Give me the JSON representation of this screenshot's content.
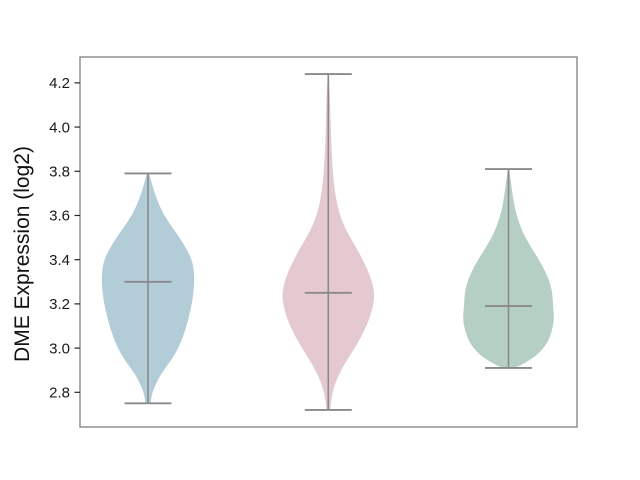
{
  "chart_data": {
    "type": "violin",
    "title": "",
    "ylabel": "DME Expression (log2)",
    "xlabel": "",
    "ylim": [
      2.64,
      4.32
    ],
    "yticks": [
      2.8,
      3.0,
      3.2,
      3.4,
      3.6,
      3.8,
      4.0,
      4.2
    ],
    "x_tick_labels": [],
    "grid": false,
    "legend": false,
    "axis_color": "#808080",
    "tick_color": "#262626",
    "tick_label_color": "#1a1a1a",
    "stat_line_color": "#8a8a8a",
    "series": [
      {
        "name": "violin-1",
        "fill_color": "#b3cdd8",
        "stats": {
          "min": 2.75,
          "median": 3.3,
          "max": 3.79
        },
        "density_profile": [
          [
            3.795,
            0.6
          ],
          [
            3.76,
            3
          ],
          [
            3.71,
            6
          ],
          [
            3.66,
            10
          ],
          [
            3.61,
            15
          ],
          [
            3.56,
            22
          ],
          [
            3.51,
            30
          ],
          [
            3.46,
            37
          ],
          [
            3.41,
            43
          ],
          [
            3.36,
            45.8
          ],
          [
            3.3,
            46.3
          ],
          [
            3.24,
            45.3
          ],
          [
            3.17,
            42.5
          ],
          [
            3.09,
            38
          ],
          [
            3.01,
            31.5
          ],
          [
            2.95,
            24
          ],
          [
            2.89,
            14
          ],
          [
            2.84,
            8
          ],
          [
            2.8,
            4.5
          ],
          [
            2.77,
            3.2
          ],
          [
            2.748,
            2.6
          ]
        ]
      },
      {
        "name": "violin-2",
        "fill_color": "#e4cad0",
        "stats": {
          "min": 2.72,
          "median": 3.25,
          "max": 4.24
        },
        "density_profile": [
          [
            4.243,
            0.6
          ],
          [
            4.15,
            1.6
          ],
          [
            4.05,
            2.2
          ],
          [
            3.95,
            2.8
          ],
          [
            3.85,
            3.8
          ],
          [
            3.76,
            5.2
          ],
          [
            3.68,
            7.5
          ],
          [
            3.61,
            11
          ],
          [
            3.55,
            16
          ],
          [
            3.5,
            22
          ],
          [
            3.45,
            28.5
          ],
          [
            3.4,
            34.5
          ],
          [
            3.34,
            40.5
          ],
          [
            3.29,
            44.5
          ],
          [
            3.24,
            46.2
          ],
          [
            3.19,
            44.8
          ],
          [
            3.13,
            41
          ],
          [
            3.06,
            34
          ],
          [
            2.99,
            25
          ],
          [
            2.93,
            16.5
          ],
          [
            2.87,
            9.5
          ],
          [
            2.82,
            5.5
          ],
          [
            2.78,
            3.5
          ],
          [
            2.745,
            2.4
          ],
          [
            2.72,
            1.8
          ]
        ]
      },
      {
        "name": "violin-3",
        "fill_color": "#b5cfc4",
        "stats": {
          "min": 2.91,
          "median": 3.19,
          "max": 3.81
        },
        "density_profile": [
          [
            3.81,
            0.6
          ],
          [
            3.76,
            2.2
          ],
          [
            3.71,
            3.6
          ],
          [
            3.64,
            6
          ],
          [
            3.58,
            9.5
          ],
          [
            3.52,
            14.5
          ],
          [
            3.46,
            22
          ],
          [
            3.4,
            30.5
          ],
          [
            3.34,
            37.5
          ],
          [
            3.29,
            42
          ],
          [
            3.24,
            44
          ],
          [
            3.19,
            44.5
          ],
          [
            3.13,
            45.8
          ],
          [
            3.07,
            43
          ],
          [
            3.02,
            38.5
          ],
          [
            2.97,
            29
          ],
          [
            2.94,
            19
          ],
          [
            2.92,
            11
          ],
          [
            2.91,
            5
          ]
        ]
      }
    ]
  }
}
